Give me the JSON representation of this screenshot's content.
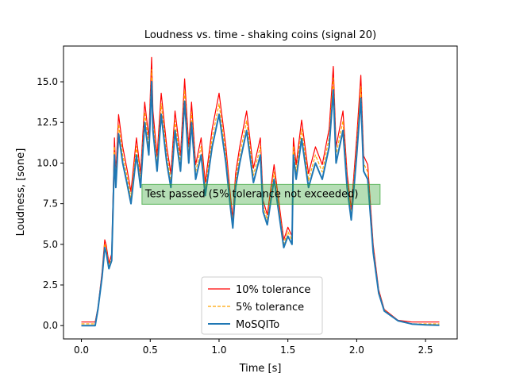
{
  "chart_data": {
    "type": "line",
    "title": "Loudness vs. time - shaking coins (signal 20)",
    "xlabel": "Time [s]",
    "ylabel": "Loudness, [sone]",
    "xlim": [
      -0.13,
      2.73
    ],
    "ylim": [
      -0.82,
      17.2
    ],
    "xticks": [
      0.0,
      0.5,
      1.0,
      1.5,
      2.0,
      2.5
    ],
    "xtick_labels": [
      "0.0",
      "0.5",
      "1.0",
      "1.5",
      "2.0",
      "2.5"
    ],
    "yticks": [
      0.0,
      2.5,
      5.0,
      7.5,
      10.0,
      12.5,
      15.0
    ],
    "ytick_labels": [
      "0.0",
      "2.5",
      "5.0",
      "7.5",
      "10.0",
      "12.5",
      "15.0"
    ],
    "grid": false,
    "legend_position": "lower-center",
    "annotation": {
      "text": "Test passed (5% tolerance not exceeded)",
      "x": 0.44,
      "y": 8.1,
      "box_color": "#2ca02c"
    },
    "series": [
      {
        "name": "10% tolerance",
        "color": "#ff0000",
        "style": "solid",
        "factor": 1.1,
        "floor": 0.22
      },
      {
        "name": "5% tolerance",
        "color": "#ffa500",
        "style": "dashed",
        "factor": 1.05,
        "floor": 0.11
      },
      {
        "name": "MoSQITo",
        "color": "#1f77b4",
        "style": "solid",
        "factor": 1.0,
        "floor": 0.0
      }
    ],
    "x": [
      0.0,
      0.1,
      0.12,
      0.15,
      0.17,
      0.18,
      0.2,
      0.22,
      0.24,
      0.25,
      0.27,
      0.3,
      0.33,
      0.36,
      0.4,
      0.43,
      0.46,
      0.49,
      0.51,
      0.52,
      0.55,
      0.58,
      0.62,
      0.65,
      0.68,
      0.72,
      0.75,
      0.78,
      0.8,
      0.83,
      0.87,
      0.9,
      0.95,
      1.0,
      1.05,
      1.08,
      1.1,
      1.12,
      1.15,
      1.2,
      1.25,
      1.3,
      1.32,
      1.35,
      1.4,
      1.45,
      1.47,
      1.5,
      1.53,
      1.54,
      1.56,
      1.6,
      1.65,
      1.7,
      1.75,
      1.8,
      1.83,
      1.85,
      1.9,
      1.93,
      1.96,
      2.0,
      2.03,
      2.05,
      2.08,
      2.12,
      2.16,
      2.2,
      2.3,
      2.4,
      2.5,
      2.6
    ],
    "values": [
      0.0,
      0.0,
      1.0,
      3.0,
      4.8,
      4.5,
      3.5,
      4.0,
      10.5,
      8.5,
      11.8,
      10.0,
      8.8,
      7.5,
      10.5,
      8.5,
      12.5,
      10.5,
      15.0,
      12.0,
      9.5,
      13.0,
      10.0,
      8.5,
      12.0,
      9.5,
      13.8,
      10.0,
      12.5,
      9.0,
      10.5,
      8.0,
      11.0,
      13.0,
      10.0,
      7.5,
      6.0,
      8.5,
      10.0,
      12.0,
      8.8,
      10.5,
      7.0,
      6.2,
      9.0,
      6.0,
      4.8,
      5.5,
      5.0,
      10.5,
      9.0,
      11.5,
      8.5,
      10.0,
      9.0,
      11.0,
      14.5,
      10.0,
      12.0,
      8.5,
      6.5,
      10.5,
      14.0,
      9.5,
      9.0,
      4.5,
      2.0,
      0.9,
      0.3,
      0.1,
      0.05,
      0.02
    ]
  }
}
